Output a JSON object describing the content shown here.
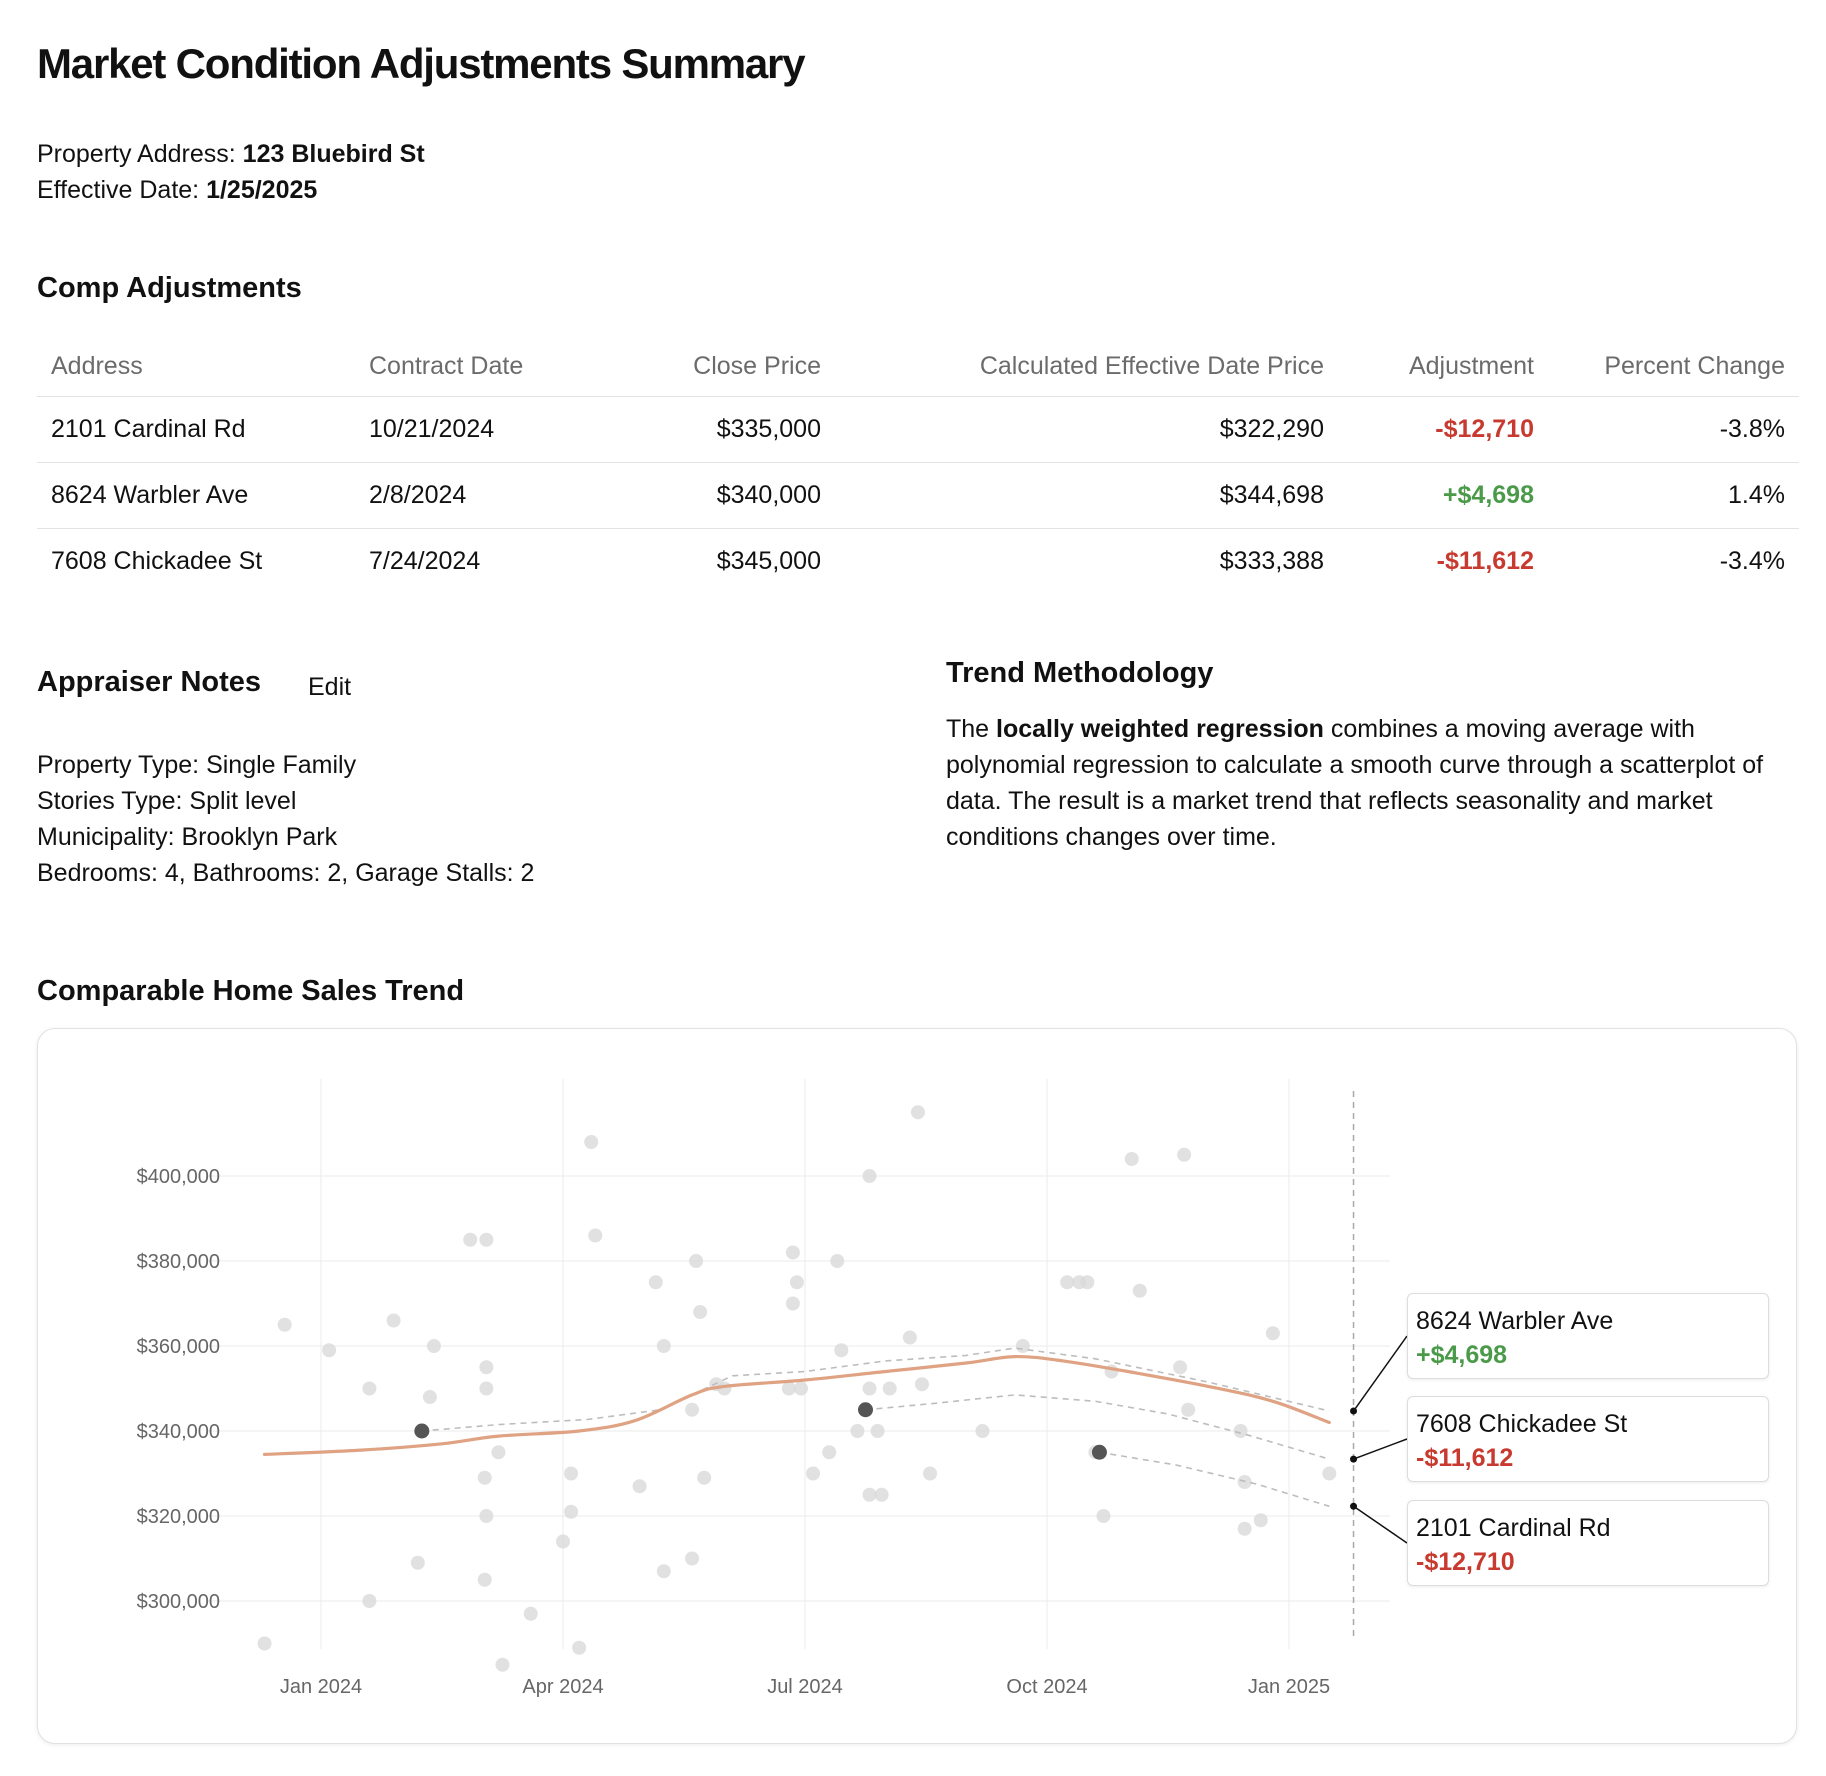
{
  "header": {
    "title": "Market Condition Adjustments Summary",
    "address_label": "Property Address:",
    "address_value": "123 Bluebird St",
    "date_label": "Effective Date:",
    "date_value": "1/25/2025"
  },
  "comps": {
    "title": "Comp Adjustments",
    "columns": [
      "Address",
      "Contract Date",
      "Close Price",
      "Calculated Effective Date Price",
      "Adjustment",
      "Percent Change"
    ],
    "rows": [
      {
        "address": "2101 Cardinal Rd",
        "contract_date": "10/21/2024",
        "close_price": "$335,000",
        "effective_price": "$322,290",
        "adjustment": "-$12,710",
        "percent": "-3.8%"
      },
      {
        "address": "8624 Warbler Ave",
        "contract_date": "2/8/2024",
        "close_price": "$340,000",
        "effective_price": "$344,698",
        "adjustment": "+$4,698",
        "percent": "1.4%"
      },
      {
        "address": "7608 Chickadee St",
        "contract_date": "7/24/2024",
        "close_price": "$345,000",
        "effective_price": "$333,388",
        "adjustment": "-$11,612",
        "percent": "-3.4%"
      }
    ]
  },
  "notes": {
    "title": "Appraiser Notes",
    "edit_label": "Edit",
    "lines": [
      "Property Type: Single Family",
      "Stories Type: Split level",
      "Municipality: Brooklyn Park",
      "Bedrooms: 4, Bathrooms: 2, Garage Stalls: 2"
    ]
  },
  "methodology": {
    "title": "Trend Methodology",
    "text_before": "The ",
    "text_bold": "locally weighted regression",
    "text_after": " combines a moving average with polynomial regression to calculate a smooth curve through a scatterplot of data. The result is a market trend that reflects seasonality and market conditions changes over time."
  },
  "chart": {
    "title": "Comparable Home Sales Trend"
  },
  "colors": {
    "positive": "#4a9a4a",
    "negative": "#c83a2f",
    "trend_line": "#dfa283",
    "scatter_point": "#d9d9d9",
    "comp_point": "#555555"
  },
  "chart_data": {
    "type": "scatter",
    "title": "Comparable Home Sales Trend",
    "xlabel": "",
    "ylabel": "",
    "x_ticks": [
      {
        "label": "Jan 2024",
        "t": 0
      },
      {
        "label": "Apr 2024",
        "t": 3
      },
      {
        "label": "Jul 2024",
        "t": 6
      },
      {
        "label": "Oct 2024",
        "t": 9
      },
      {
        "label": "Jan 2025",
        "t": 12
      }
    ],
    "x_range": [
      -1.3,
      12.8
    ],
    "y_ticks": [
      300000,
      320000,
      340000,
      360000,
      380000,
      400000
    ],
    "ylim": [
      285000,
      418000
    ],
    "effective_date_t": 12.8,
    "scatter": [
      [
        -0.7,
        290000
      ],
      [
        -0.45,
        365000
      ],
      [
        0.1,
        359000
      ],
      [
        0.6,
        300000
      ],
      [
        0.6,
        350000
      ],
      [
        0.9,
        366000
      ],
      [
        1.2,
        309000
      ],
      [
        1.35,
        348000
      ],
      [
        1.4,
        360000
      ],
      [
        1.85,
        385000
      ],
      [
        2.05,
        385000
      ],
      [
        2.05,
        355000
      ],
      [
        2.05,
        350000
      ],
      [
        2.03,
        329000
      ],
      [
        2.05,
        320000
      ],
      [
        2.03,
        305000
      ],
      [
        2.2,
        335000
      ],
      [
        2.25,
        285000
      ],
      [
        2.6,
        297000
      ],
      [
        3.0,
        314000
      ],
      [
        3.1,
        330000
      ],
      [
        3.1,
        321000
      ],
      [
        3.2,
        289000
      ],
      [
        3.35,
        408000
      ],
      [
        3.4,
        386000
      ],
      [
        3.95,
        327000
      ],
      [
        4.15,
        375000
      ],
      [
        4.25,
        360000
      ],
      [
        4.25,
        307000
      ],
      [
        4.6,
        345000
      ],
      [
        4.6,
        310000
      ],
      [
        4.65,
        380000
      ],
      [
        4.7,
        368000
      ],
      [
        4.75,
        329000
      ],
      [
        4.9,
        351000
      ],
      [
        5.0,
        350000
      ],
      [
        5.85,
        382000
      ],
      [
        5.85,
        370000
      ],
      [
        5.8,
        350000
      ],
      [
        5.95,
        350000
      ],
      [
        5.9,
        375000
      ],
      [
        6.1,
        330000
      ],
      [
        6.3,
        335000
      ],
      [
        6.4,
        380000
      ],
      [
        6.45,
        359000
      ],
      [
        6.65,
        340000
      ],
      [
        6.8,
        400000
      ],
      [
        6.8,
        325000
      ],
      [
        6.8,
        350000
      ],
      [
        6.9,
        340000
      ],
      [
        6.95,
        325000
      ],
      [
        7.05,
        350000
      ],
      [
        7.3,
        362000
      ],
      [
        7.4,
        415000
      ],
      [
        7.45,
        351000
      ],
      [
        7.55,
        330000
      ],
      [
        8.2,
        340000
      ],
      [
        8.7,
        360000
      ],
      [
        9.25,
        375000
      ],
      [
        9.4,
        375000
      ],
      [
        9.5,
        375000
      ],
      [
        9.6,
        335000
      ],
      [
        9.7,
        320000
      ],
      [
        9.8,
        354000
      ],
      [
        10.05,
        404000
      ],
      [
        10.15,
        373000
      ],
      [
        10.7,
        405000
      ],
      [
        10.65,
        355000
      ],
      [
        10.75,
        345000
      ],
      [
        11.4,
        340000
      ],
      [
        11.45,
        328000
      ],
      [
        11.45,
        317000
      ],
      [
        11.65,
        319000
      ],
      [
        11.8,
        363000
      ],
      [
        12.5,
        330000
      ]
    ],
    "trend_line": [
      [
        -0.7,
        334500
      ],
      [
        0.5,
        335500
      ],
      [
        1.5,
        337000
      ],
      [
        2.2,
        338800
      ],
      [
        3.2,
        340000
      ],
      [
        3.9,
        342500
      ],
      [
        4.6,
        348500
      ],
      [
        5.0,
        350500
      ],
      [
        6.0,
        352000
      ],
      [
        7.0,
        354000
      ],
      [
        8.0,
        356000
      ],
      [
        8.6,
        357500
      ],
      [
        9.2,
        356500
      ],
      [
        10.0,
        354000
      ],
      [
        11.0,
        350500
      ],
      [
        11.8,
        347000
      ],
      [
        12.5,
        342000
      ]
    ],
    "comp_points": [
      {
        "label": "8624 Warbler Ave",
        "t": 1.25,
        "close": 340000,
        "effective": 344698,
        "adjustment": "+$4,698",
        "path": [
          [
            1.25,
            340000
          ],
          [
            2.2,
            341500
          ],
          [
            3.3,
            342700
          ],
          [
            4.2,
            345000
          ],
          [
            5.1,
            353000
          ],
          [
            6.0,
            354000
          ],
          [
            7.0,
            356500
          ],
          [
            8.0,
            357800
          ],
          [
            8.6,
            359500
          ],
          [
            9.6,
            357000
          ],
          [
            11.0,
            351500
          ],
          [
            12.5,
            344698
          ]
        ]
      },
      {
        "label": "7608 Chickadee St",
        "t": 6.75,
        "close": 345000,
        "effective": 333388,
        "adjustment": "-$11,612",
        "path": [
          [
            6.75,
            345000
          ],
          [
            7.6,
            346500
          ],
          [
            8.6,
            348500
          ],
          [
            9.6,
            347000
          ],
          [
            10.5,
            344000
          ],
          [
            11.5,
            339000
          ],
          [
            12.5,
            333388
          ]
        ]
      },
      {
        "label": "2101 Cardinal Rd",
        "t": 9.65,
        "close": 335000,
        "effective": 322290,
        "adjustment": "-$12,710",
        "path": [
          [
            9.65,
            335000
          ],
          [
            10.6,
            332000
          ],
          [
            11.6,
            327500
          ],
          [
            12.5,
            322290
          ]
        ]
      }
    ]
  }
}
